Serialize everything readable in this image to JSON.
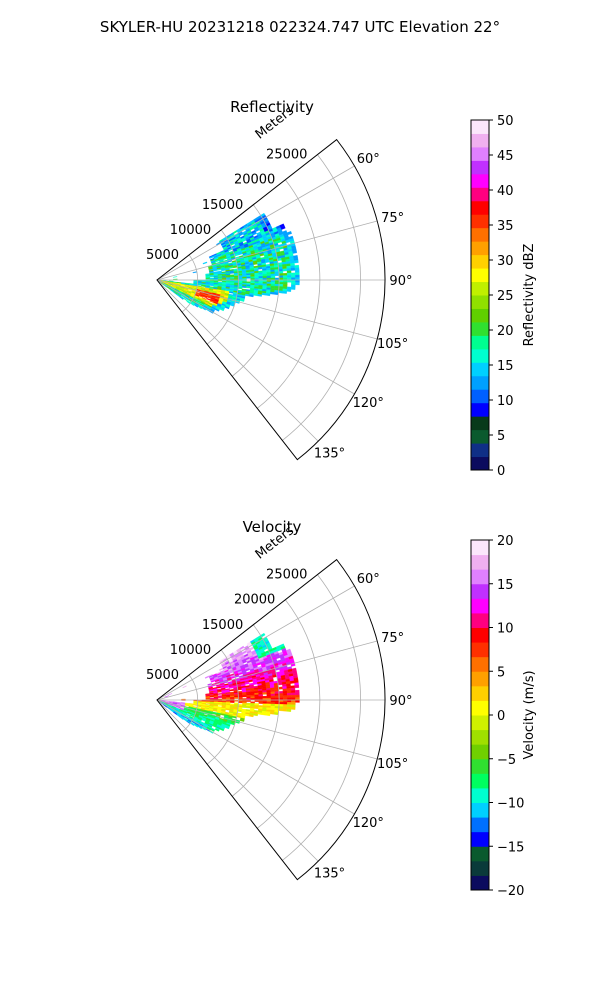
{
  "figure": {
    "suptitle": "SKYLER-HU  20231218  022324.747 UTC Elevation 22°"
  },
  "chart_data": [
    {
      "type": "polar-sector",
      "title": "Reflectivity",
      "radial_axis_label": "Meters",
      "radial_ticks": [
        "5000",
        "10000",
        "15000",
        "20000",
        "25000"
      ],
      "radial_tick_values": [
        5000,
        10000,
        15000,
        20000,
        25000
      ],
      "range_max": 28000,
      "azimuth_ticks": [
        "60°",
        "75°",
        "90°",
        "105°",
        "120°",
        "135°"
      ],
      "azimuth_tick_values": [
        60,
        75,
        90,
        105,
        120,
        135
      ],
      "azimuth_range": [
        52,
        142
      ],
      "grid": true,
      "colorbar": {
        "label": "Reflectivity dBZ",
        "ticks": [
          "0",
          "5",
          "10",
          "15",
          "20",
          "25",
          "30",
          "35",
          "40",
          "45",
          "50"
        ],
        "range": [
          0,
          50
        ],
        "colors": [
          "#0b0b5e",
          "#0f2f86",
          "#0a5a2e",
          "#083a1a",
          "#0000ff",
          "#0060ff",
          "#00a0ff",
          "#00d0ff",
          "#00ffd0",
          "#00ff90",
          "#30e030",
          "#60d000",
          "#90e000",
          "#c0f000",
          "#ffff00",
          "#ffd000",
          "#ffa000",
          "#ff7000",
          "#ff3000",
          "#ff0000",
          "#ff0080",
          "#ff00ff",
          "#c030ff",
          "#e080ff",
          "#f0b0f0",
          "#fbe6fb"
        ]
      },
      "data_summary": "Echo region spans roughly 58°–125° azimuth out to about 16000 m; mostly 15–25 dBZ with a 30–40 dBZ core near 105°–110° at about 6000–7000 m."
    },
    {
      "type": "polar-sector",
      "title": "Velocity",
      "radial_axis_label": "Meters",
      "radial_ticks": [
        "5000",
        "10000",
        "15000",
        "20000",
        "25000"
      ],
      "radial_tick_values": [
        5000,
        10000,
        15000,
        20000,
        25000
      ],
      "range_max": 28000,
      "azimuth_ticks": [
        "60°",
        "75°",
        "90°",
        "105°",
        "120°",
        "135°"
      ],
      "azimuth_tick_values": [
        60,
        75,
        90,
        105,
        120,
        135
      ],
      "azimuth_range": [
        52,
        142
      ],
      "grid": true,
      "colorbar": {
        "label": "Velocity (m/s)",
        "ticks": [
          "−20",
          "−15",
          "−10",
          "−5",
          "0",
          "5",
          "10",
          "15",
          "20"
        ],
        "range": [
          -20,
          20
        ],
        "colors": [
          "#0b0b5e",
          "#0a3a3a",
          "#0a5a2e",
          "#0000ff",
          "#0070ff",
          "#00d0ff",
          "#00ffd0",
          "#00ff60",
          "#30e030",
          "#70d000",
          "#a0e000",
          "#d0f000",
          "#ffff00",
          "#ffd000",
          "#ffa000",
          "#ff7000",
          "#ff3000",
          "#ff0000",
          "#ff0080",
          "#ff00ff",
          "#c030ff",
          "#e080ff",
          "#f0b0f0",
          "#fbe6fb"
        ]
      },
      "data_summary": "Outbound 5–15 m/s (red to magenta) in the northern part near 70°–90°, near 0 m/s (yellow) around 90°–100°, inbound −5 to −12 m/s (green/cyan) along 105°–125°."
    }
  ]
}
